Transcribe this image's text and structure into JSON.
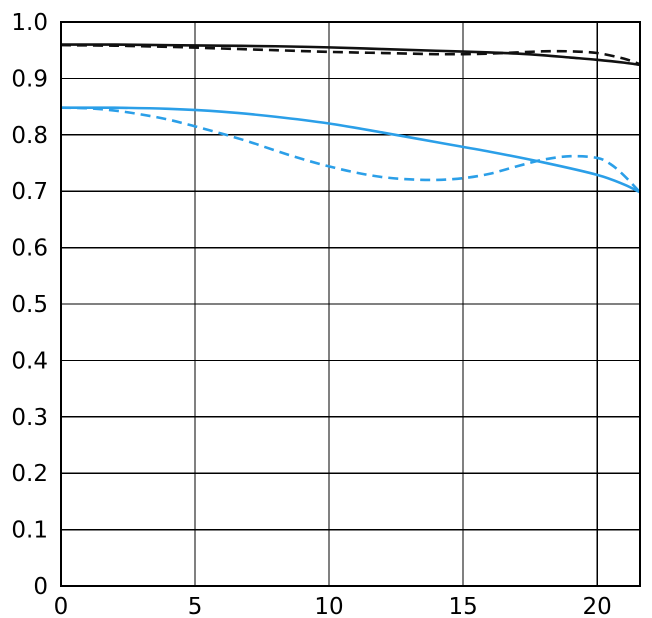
{
  "chart_data": {
    "type": "line",
    "title": "",
    "xlabel": "",
    "ylabel": "",
    "xlim": [
      0,
      21.6
    ],
    "ylim": [
      0,
      1.0
    ],
    "grid": true,
    "x_ticks": [
      0,
      5,
      10,
      15,
      20
    ],
    "x_tick_labels": [
      "0",
      "5",
      "10",
      "15",
      "20"
    ],
    "y_ticks": [
      0,
      0.1,
      0.2,
      0.3,
      0.4,
      0.5,
      0.6,
      0.7,
      0.8,
      0.9,
      1.0
    ],
    "y_tick_labels": [
      "0",
      "0.1",
      "0.2",
      "0.3",
      "0.4",
      "0.5",
      "0.6",
      "0.7",
      "0.8",
      "0.9",
      "1.0"
    ],
    "series": [
      {
        "color": "#111111",
        "style": "solid",
        "x": [
          0,
          2,
          4,
          6,
          8,
          10,
          12,
          14,
          16,
          17,
          18,
          19,
          20,
          21,
          21.6
        ],
        "values": [
          0.96,
          0.96,
          0.959,
          0.958,
          0.957,
          0.955,
          0.952,
          0.949,
          0.946,
          0.944,
          0.941,
          0.937,
          0.933,
          0.928,
          0.924
        ]
      },
      {
        "color": "#111111",
        "style": "dashed",
        "x": [
          0,
          2,
          4,
          6,
          8,
          10,
          12,
          14,
          15,
          16,
          17,
          18,
          19,
          20,
          21,
          21.6
        ],
        "values": [
          0.959,
          0.958,
          0.956,
          0.953,
          0.95,
          0.947,
          0.945,
          0.943,
          0.943,
          0.944,
          0.946,
          0.948,
          0.948,
          0.945,
          0.935,
          0.925
        ]
      },
      {
        "color": "#2b9fe8",
        "style": "solid",
        "x": [
          0,
          2,
          4,
          6,
          8,
          10,
          12,
          14,
          16,
          18,
          20,
          21,
          21.6
        ],
        "values": [
          0.848,
          0.848,
          0.846,
          0.841,
          0.832,
          0.82,
          0.804,
          0.787,
          0.77,
          0.751,
          0.729,
          0.712,
          0.698
        ]
      },
      {
        "color": "#2b9fe8",
        "style": "dashed",
        "x": [
          0,
          1,
          2,
          3,
          4,
          5,
          6,
          7,
          8,
          9,
          10,
          11,
          12,
          13,
          14,
          15,
          16,
          17,
          18,
          19,
          20,
          20.5,
          21,
          21.6
        ],
        "values": [
          0.848,
          0.847,
          0.843,
          0.836,
          0.827,
          0.815,
          0.802,
          0.788,
          0.772,
          0.757,
          0.744,
          0.733,
          0.725,
          0.721,
          0.72,
          0.723,
          0.731,
          0.744,
          0.756,
          0.762,
          0.759,
          0.748,
          0.728,
          0.698
        ]
      }
    ]
  }
}
